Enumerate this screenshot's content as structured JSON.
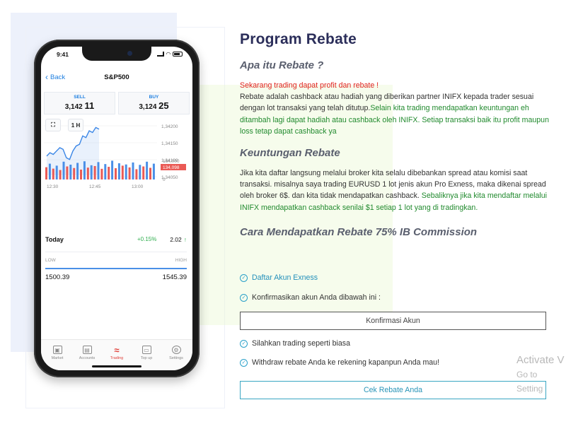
{
  "phone": {
    "status_time": "9:41",
    "nav": {
      "back_label": "Back",
      "title": "S&P500"
    },
    "sell": {
      "label": "SELL",
      "price_main": "3,142",
      "price_big": "11"
    },
    "buy": {
      "label": "BUY",
      "price_main": "3,124",
      "price_big": "25"
    },
    "toolbar": {
      "timeframe": "1 H"
    },
    "price_axis": [
      "1,34200",
      "1,34150",
      "1,34100",
      "1,34050"
    ],
    "volume_axis": {
      "top": "164,000",
      "bottom": "0",
      "current": "134,098"
    },
    "time_axis": [
      "12:30",
      "12:45",
      "13:00"
    ],
    "today": {
      "label": "Today",
      "change_pct": "+0.15%",
      "change_val": "2.02",
      "arrow": "↑"
    },
    "range": {
      "low_label": "LOW",
      "high_label": "HIGH",
      "low_value": "1500.39",
      "high_value": "1545.39",
      "current_level": 1.0
    },
    "tabs": [
      {
        "label": "Market",
        "icon": "market-icon"
      },
      {
        "label": "Accounts",
        "icon": "accounts-icon"
      },
      {
        "label": "Trading",
        "icon": "trading-icon",
        "active": true
      },
      {
        "label": "Top up",
        "icon": "wallet-icon"
      },
      {
        "label": "Settings",
        "icon": "gear-icon"
      }
    ],
    "line_series": [
      1.34115,
      1.34125,
      1.3412,
      1.3413,
      1.3414,
      1.34135,
      1.3411,
      1.34105,
      1.3413,
      1.34145,
      1.3415,
      1.34175,
      1.3417,
      1.3419,
      1.34185,
      1.342,
      1.34195
    ],
    "volume_bars": [
      {
        "v": 62,
        "c": "red"
      },
      {
        "v": 80,
        "c": "blue"
      },
      {
        "v": 55,
        "c": "red"
      },
      {
        "v": 70,
        "c": "blue"
      },
      {
        "v": 48,
        "c": "red"
      },
      {
        "v": 90,
        "c": "blue"
      },
      {
        "v": 66,
        "c": "red"
      },
      {
        "v": 75,
        "c": "blue"
      },
      {
        "v": 58,
        "c": "red"
      },
      {
        "v": 84,
        "c": "blue"
      },
      {
        "v": 50,
        "c": "red"
      },
      {
        "v": 92,
        "c": "blue"
      },
      {
        "v": 60,
        "c": "red"
      },
      {
        "v": 72,
        "c": "blue"
      },
      {
        "v": 68,
        "c": "red"
      },
      {
        "v": 88,
        "c": "blue"
      },
      {
        "v": 54,
        "c": "red"
      },
      {
        "v": 78,
        "c": "blue"
      },
      {
        "v": 64,
        "c": "red"
      },
      {
        "v": 95,
        "c": "blue"
      },
      {
        "v": 57,
        "c": "red"
      },
      {
        "v": 82,
        "c": "blue"
      },
      {
        "v": 70,
        "c": "red"
      },
      {
        "v": 76,
        "c": "blue"
      },
      {
        "v": 61,
        "c": "red"
      },
      {
        "v": 86,
        "c": "blue"
      },
      {
        "v": 52,
        "c": "red"
      },
      {
        "v": 74,
        "c": "blue"
      },
      {
        "v": 66,
        "c": "red"
      },
      {
        "v": 90,
        "c": "blue"
      },
      {
        "v": 59,
        "c": "red"
      },
      {
        "v": 80,
        "c": "blue"
      }
    ]
  },
  "content": {
    "title": "Program Rebate",
    "section1": {
      "heading": "Apa itu Rebate ?",
      "highlight": "Sekarang trading dapat profit dan rebate !",
      "p1_normal": "Rebate adalah cashback atau hadiah yang diberikan partner INIFX kepada trader sesuai dengan lot transaksi yang telah ditutup.",
      "p1_green": "Selain kita trading mendapatkan keuntungan eh ditambah lagi dapat hadiah atau cashback oleh INIFX. Setiap transaksi baik itu profit maupun loss tetap dapat cashback ya"
    },
    "section2": {
      "heading": "Keuntungan Rebate",
      "p_normal": "Jika kita daftar langsung melalui broker kita selalu dibebankan spread atau komisi saat transaksi. misalnya saya trading EURUSD 1 lot jenis akun Pro Exness, maka dikenai spread oleh broker 6$. dan kita tidak mendapatkan cashback.",
      "p_green": "Sebaliknya jika kita mendaftar melalui INIFX mendapatkan cashback senilai $1 setiap 1 lot yang di tradingkan."
    },
    "section3": {
      "heading": "Cara Mendapatkan Rebate 75% IB Commission",
      "steps": [
        "Daftar Akun Exness",
        "Konfirmasikan akun Anda dibawah ini :",
        "Silahkan trading seperti biasa",
        "Withdraw rebate Anda ke rekening kapanpun Anda mau!"
      ],
      "confirm_button": "Konfirmasi Akun",
      "rebate_button": "Cek Rebate Anda"
    }
  },
  "watermark": {
    "line1": "Activate V",
    "line2": "Go to Setting"
  },
  "colors": {
    "title": "#2b2e5a",
    "red": "#e0221d",
    "green": "#218a2e",
    "link": "#2390bb",
    "button_border": "#3aa6c3"
  }
}
